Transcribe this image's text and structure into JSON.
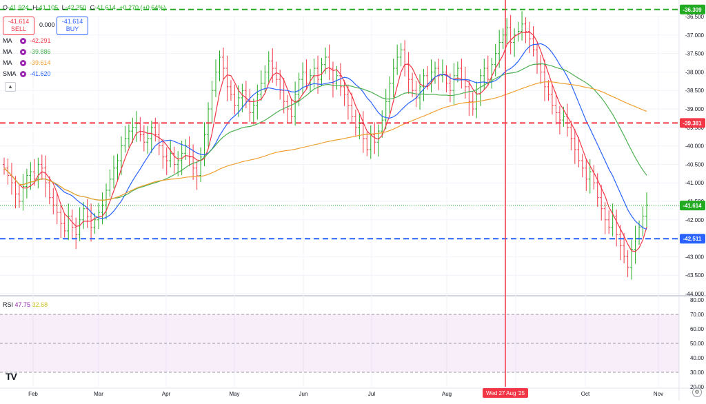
{
  "header": {
    "open_label": "O",
    "open_value": "-41.924",
    "high_label": "H",
    "high_value": "-41.105",
    "low_label": "L",
    "low_value": "-42.250",
    "close_label": "C",
    "close_value": "-41.614",
    "change_value": "+0.270 (+0.64%)"
  },
  "trade": {
    "sell_price": "-41.614",
    "sell_label": "SELL",
    "spread": "0.000",
    "buy_price": "-41.614",
    "buy_label": "BUY"
  },
  "indicators": [
    {
      "name": "MA",
      "value": "-42.291",
      "color": "#f23645"
    },
    {
      "name": "MA",
      "value": "-39.886",
      "color": "#4caf50"
    },
    {
      "name": "MA",
      "value": "-39.614",
      "color": "#f0a030"
    },
    {
      "name": "SMA",
      "value": "-41.620",
      "color": "#2962ff"
    }
  ],
  "collapse_icon": "chevron-up-icon",
  "rsi": {
    "name": "RSI",
    "value": "47.75",
    "ma_value": "32.68",
    "color": "#9c27b0",
    "ma_color": "#e0d93c"
  },
  "crosshair_label": "Wed 27 Aug '25",
  "logo": "TV",
  "settings_icon": "gear-icon",
  "chart_data": [
    {
      "type": "bar",
      "y_axis_side": "right",
      "ylim": [
        -44.0,
        -36.5
      ],
      "y_ticks": [
        "-36.500",
        "-37.000",
        "-37.500",
        "-38.000",
        "-38.500",
        "-39.000",
        "-39.500",
        "-40.000",
        "-40.500",
        "-41.000",
        "-41.500",
        "-42.000",
        "-42.500",
        "-43.000",
        "-43.500",
        "-44.000"
      ],
      "x_tick_labels": [
        "Feb",
        "Mar",
        "Apr",
        "May",
        "Jun",
        "Jul",
        "Aug",
        "Sep",
        "Oct",
        "Nov"
      ],
      "price_labels": [
        {
          "value": -36.309,
          "text": "-36.309",
          "color": "#22ab22"
        },
        {
          "value": -39.381,
          "text": "-39.381",
          "color": "#f23645"
        },
        {
          "value": -41.614,
          "text": "-41.614",
          "color": "#22ab22"
        },
        {
          "value": -42.511,
          "text": "-42.511",
          "color": "#2962ff"
        }
      ],
      "horizontal_lines": [
        {
          "value": -36.309,
          "color": "#22ab22",
          "style": "dashed"
        },
        {
          "value": -39.381,
          "color": "#f23645",
          "style": "dashed"
        },
        {
          "value": -42.511,
          "color": "#2962ff",
          "style": "dashed"
        }
      ],
      "bar_up_color": "#22ab22",
      "bar_down_color": "#f23645",
      "ohlc_closes": [
        -40.6,
        -40.8,
        -41.0,
        -41.3,
        -41.5,
        -41.1,
        -40.8,
        -40.7,
        -40.9,
        -40.5,
        -40.6,
        -41.0,
        -41.4,
        -41.6,
        -41.8,
        -42.1,
        -42.3,
        -41.9,
        -42.2,
        -42.4,
        -42.0,
        -41.7,
        -41.9,
        -42.2,
        -42.0,
        -41.8,
        -41.6,
        -41.2,
        -40.9,
        -40.6,
        -40.4,
        -40.0,
        -39.8,
        -39.6,
        -39.5,
        -39.4,
        -39.7,
        -39.9,
        -39.8,
        -39.5,
        -39.7,
        -40.0,
        -40.3,
        -40.4,
        -40.2,
        -40.5,
        -40.4,
        -40.2,
        -40.0,
        -40.3,
        -40.6,
        -40.8,
        -40.3,
        -39.7,
        -39.0,
        -38.5,
        -38.0,
        -37.6,
        -37.9,
        -38.4,
        -38.6,
        -38.9,
        -38.7,
        -38.5,
        -38.8,
        -39.1,
        -38.9,
        -38.6,
        -38.3,
        -38.0,
        -37.7,
        -37.9,
        -38.2,
        -38.5,
        -38.8,
        -39.0,
        -39.2,
        -38.6,
        -38.2,
        -38.0,
        -38.3,
        -38.1,
        -37.9,
        -38.2,
        -37.8,
        -37.6,
        -37.9,
        -38.3,
        -38.1,
        -38.4,
        -38.6,
        -38.9,
        -39.2,
        -39.5,
        -39.4,
        -39.8,
        -40.1,
        -39.7,
        -39.9,
        -39.6,
        -39.3,
        -38.8,
        -38.3,
        -37.9,
        -37.6,
        -37.4,
        -37.8,
        -38.2,
        -38.5,
        -38.7,
        -38.4,
        -38.1,
        -38.3,
        -38.0,
        -37.9,
        -38.1,
        -38.0,
        -38.3,
        -38.5,
        -38.1,
        -37.9,
        -38.2,
        -38.4,
        -38.8,
        -39.0,
        -38.6,
        -38.1,
        -37.9,
        -38.2,
        -37.8,
        -37.5,
        -37.2,
        -37.0,
        -36.8,
        -37.2,
        -37.0,
        -36.9,
        -36.7,
        -36.9,
        -37.1,
        -37.4,
        -37.8,
        -38.0,
        -38.4,
        -38.6,
        -38.9,
        -39.1,
        -39.3,
        -39.2,
        -39.5,
        -39.8,
        -40.1,
        -40.4,
        -40.6,
        -40.9,
        -40.7,
        -41.0,
        -41.4,
        -41.7,
        -42.0,
        -42.2,
        -41.9,
        -42.4,
        -42.7,
        -43.0,
        -43.3,
        -42.8,
        -42.5,
        -42.2,
        -41.9,
        -41.6
      ]
    },
    {
      "type": "line",
      "name": "RSI",
      "ylim": [
        20,
        80
      ],
      "y_ticks": [
        "80.00",
        "70.00",
        "60.00",
        "50.00",
        "40.00",
        "30.00",
        "20.00"
      ],
      "band": [
        30,
        70
      ],
      "values": [
        46,
        44,
        42,
        48,
        52,
        47,
        45,
        44,
        40,
        38,
        34,
        36,
        40,
        42,
        44,
        46,
        52,
        58,
        64,
        68,
        72,
        74,
        66,
        60,
        55,
        50,
        48,
        47,
        45,
        46,
        44,
        47,
        46,
        48,
        50,
        46,
        43,
        47,
        55,
        62,
        76,
        66,
        60,
        58,
        56,
        54,
        57,
        60,
        56,
        53,
        55,
        62,
        60,
        56,
        54,
        53,
        52,
        50,
        48,
        50,
        52,
        53,
        54,
        50,
        52,
        54,
        48,
        46,
        44,
        42,
        40,
        36,
        32,
        30,
        36,
        48,
        58,
        64,
        66,
        62,
        58,
        54,
        50,
        49,
        52,
        55,
        56,
        54,
        57,
        59,
        60,
        56,
        52,
        48,
        45,
        50,
        56,
        60,
        62,
        60,
        58,
        56,
        60,
        62,
        64,
        66,
        62,
        58,
        60,
        62,
        64,
        62,
        60,
        56,
        50,
        46,
        42,
        38,
        36,
        34,
        32,
        30,
        30,
        30,
        28,
        26,
        24,
        22,
        21,
        24,
        26,
        28,
        27,
        26,
        28,
        27,
        40,
        42,
        45,
        47.75
      ],
      "ma_values": [
        44,
        43,
        42,
        42,
        43,
        43,
        43,
        43,
        42,
        41,
        40,
        40,
        40,
        41,
        42,
        43,
        45,
        48,
        52,
        56,
        60,
        64,
        65,
        64,
        62,
        60,
        58,
        56,
        54,
        53,
        52,
        51,
        50,
        50,
        50,
        50,
        50,
        50,
        52,
        54,
        57,
        58,
        58,
        58,
        58,
        57,
        57,
        57,
        57,
        56,
        56,
        57,
        57,
        57,
        56,
        56,
        55,
        54,
        53,
        52,
        52,
        52,
        52,
        52,
        52,
        52,
        51,
        50,
        49,
        48,
        46,
        44,
        42,
        40,
        40,
        42,
        45,
        48,
        51,
        53,
        54,
        54,
        53,
        52,
        52,
        52,
        53,
        53,
        54,
        55,
        56,
        56,
        55,
        54,
        52,
        52,
        53,
        54,
        56,
        57,
        58,
        58,
        58,
        59,
        60,
        61,
        61,
        60,
        60,
        61,
        61,
        61,
        61,
        60,
        58,
        56,
        54,
        51,
        48,
        45,
        42,
        40,
        37,
        35,
        34,
        33,
        32,
        31,
        30,
        29,
        29,
        28,
        28,
        28,
        28,
        28,
        30,
        31,
        32,
        32.68
      ]
    }
  ]
}
